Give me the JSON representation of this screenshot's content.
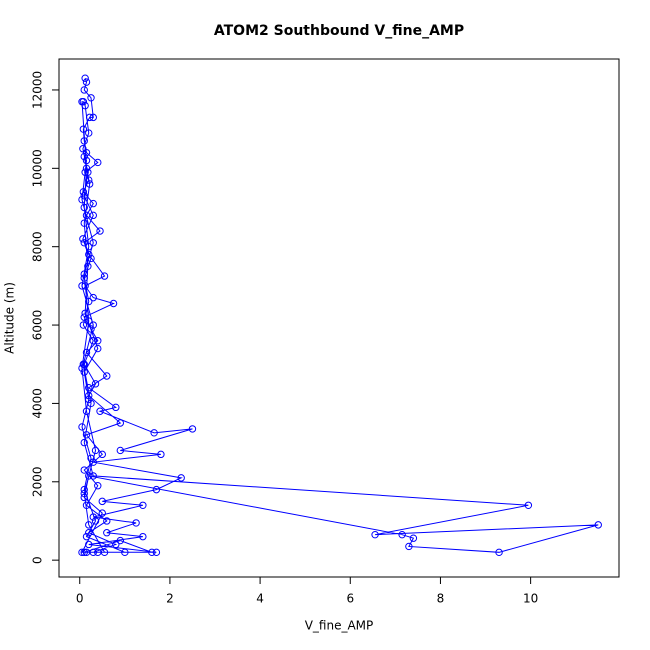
{
  "chart_data": {
    "type": "line",
    "title": "ATOM2 Southbound V_fine_AMP",
    "x_label": "V_fine_AMP",
    "y_label": "Altitude (m)",
    "xlim": [
      -0.46,
      11.96
    ],
    "ylim": [
      -430,
      12790
    ],
    "xticks": [
      0,
      2,
      4,
      6,
      8,
      10
    ],
    "yticks": [
      0,
      2000,
      4000,
      6000,
      8000,
      10000,
      12000
    ],
    "color": "#0000ff",
    "marker": "circle",
    "x": [
      0.12,
      0.15,
      0.1,
      0.25,
      0.3,
      0.22,
      0.08,
      0.1,
      0.15,
      0.4,
      0.12,
      0.2,
      0.08,
      0.3,
      0.15,
      0.45,
      0.1,
      0.2,
      0.55,
      0.12,
      0.3,
      0.75,
      0.1,
      0.25,
      0.4,
      0.15,
      0.6,
      0.2,
      0.8,
      0.45,
      1.65,
      2.5,
      0.9,
      1.8,
      0.3,
      2.25,
      1.7,
      0.5,
      1.4,
      0.3,
      1.25,
      0.6,
      1.4,
      0.2,
      1.7,
      0.15,
      0.3,
      0.8,
      0.2,
      0.6,
      0.15,
      0.4,
      0.1,
      0.5,
      0.15,
      0.9,
      0.2,
      0.35,
      0.1,
      0.3,
      0.08,
      0.2,
      0.1,
      0.25,
      0.07,
      0.3,
      0.1,
      0.18,
      0.07,
      0.2,
      0.12,
      0.08,
      0.05,
      0.15,
      0.1,
      0.2,
      0.05,
      0.3,
      0.08,
      0.25,
      0.1,
      0.3,
      9.95,
      6.55,
      11.5,
      9.3,
      7.3,
      7.4,
      7.15,
      0.2,
      0.1,
      0.5,
      0.05,
      0.4,
      1.0,
      0.15,
      0.35,
      0.1,
      0.25,
      0.05,
      0.2,
      0.1,
      0.4,
      0.12,
      0.18,
      0.1,
      0.22,
      0.1,
      0.15,
      0.05,
      0.3,
      0.1,
      0.2,
      0.05,
      0.15,
      0.35,
      0.1,
      0.2,
      0.55,
      1.6,
      0.9,
      0.1
    ],
    "values": [
      12300,
      12200,
      12000,
      11800,
      11300,
      11300,
      11000,
      10700,
      10400,
      10150,
      9900,
      9700,
      9400,
      9100,
      8800,
      8400,
      8100,
      7800,
      7250,
      7000,
      6700,
      6550,
      6200,
      5900,
      5600,
      5300,
      4700,
      4400,
      3900,
      3800,
      3250,
      3350,
      2800,
      2700,
      2500,
      2100,
      1800,
      1500,
      1400,
      1100,
      950,
      700,
      600,
      400,
      200,
      200,
      200,
      400,
      700,
      1000,
      1400,
      1900,
      2300,
      2700,
      3200,
      3500,
      4200,
      4500,
      5000,
      5600,
      6000,
      6600,
      7200,
      7700,
      8200,
      8800,
      9300,
      9900,
      10500,
      10900,
      11600,
      11700,
      11700,
      10000,
      9000,
      8000,
      7000,
      6000,
      5000,
      4000,
      3000,
      2150,
      1400,
      650,
      900,
      200,
      350,
      560,
      650,
      2150,
      1600,
      1200,
      200,
      200,
      200,
      600,
      1000,
      1800,
      2600,
      3400,
      4100,
      4800,
      5400,
      6300,
      7500,
      8600,
      9600,
      10300,
      10200,
      9200,
      8100,
      7300,
      6100,
      4900,
      3800,
      2800,
      1700,
      900,
      200,
      200,
      500,
      200
    ]
  }
}
